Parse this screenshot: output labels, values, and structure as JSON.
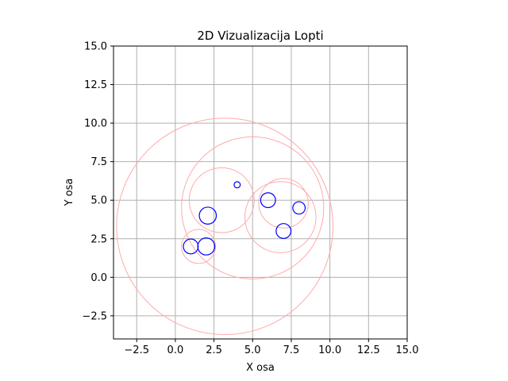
{
  "chart_data": {
    "type": "scatter",
    "title": "2D Vizualizacija Lopti",
    "xlabel": "X osa",
    "ylabel": "Y osa",
    "xlim": [
      -4,
      15
    ],
    "ylim": [
      -4,
      15
    ],
    "xticks": [
      -2.5,
      0.0,
      2.5,
      5.0,
      7.5,
      10.0,
      12.5,
      15.0
    ],
    "yticks": [
      -2.5,
      0.0,
      2.5,
      5.0,
      7.5,
      10.0,
      12.5,
      15.0
    ],
    "xtick_labels": [
      "−2.5",
      "0.0",
      "2.5",
      "5.0",
      "7.5",
      "10.0",
      "12.5",
      "15.0"
    ],
    "ytick_labels": [
      "−2.5",
      "0.0",
      "2.5",
      "5.0",
      "7.5",
      "10.0",
      "12.5",
      "15.0"
    ],
    "grid": true,
    "aspect": "equal",
    "balls": [
      {
        "x": 4.0,
        "y": 6.0,
        "r": 0.2
      },
      {
        "x": 2.1,
        "y": 4.0,
        "r": 0.55
      },
      {
        "x": 6.0,
        "y": 5.0,
        "r": 0.48
      },
      {
        "x": 8.0,
        "y": 4.5,
        "r": 0.4
      },
      {
        "x": 7.0,
        "y": 3.0,
        "r": 0.48
      },
      {
        "x": 1.0,
        "y": 2.0,
        "r": 0.48
      },
      {
        "x": 2.0,
        "y": 2.0,
        "r": 0.55
      }
    ],
    "clusters": [
      {
        "x": 3.2,
        "y": 3.3,
        "r": 7.0
      },
      {
        "x": 5.0,
        "y": 4.5,
        "r": 4.6
      },
      {
        "x": 3.0,
        "y": 5.0,
        "r": 2.1
      },
      {
        "x": 6.8,
        "y": 3.9,
        "r": 2.3
      },
      {
        "x": 7.0,
        "y": 4.8,
        "r": 1.6
      },
      {
        "x": 1.5,
        "y": 2.0,
        "r": 1.1
      }
    ],
    "colors": {
      "balls": "#0000ff",
      "clusters": "#ffaaaa",
      "grid": "#b0b0b0",
      "axes": "#000000"
    }
  }
}
